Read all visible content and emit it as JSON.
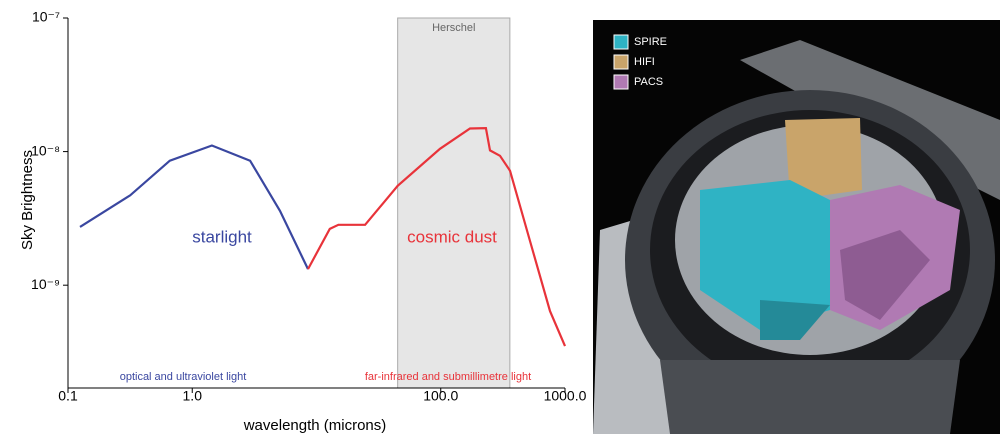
{
  "chart_data": {
    "type": "line",
    "y_label": "Sky Brightness",
    "x_label": "wavelength (microns)",
    "log_x": true,
    "log_y": true,
    "xlim": [
      0.1,
      1000
    ],
    "ylim": [
      1.7e-10,
      1e-07
    ],
    "xticks": [
      0.1,
      {
        "value": 1,
        "label": "1.0"
      },
      {
        "value": 100,
        "label": "100.0"
      },
      {
        "value": 1000,
        "label": "1000.0"
      }
    ],
    "yticks": [
      {
        "value": 1e-09,
        "label": "10⁻⁹"
      },
      {
        "value": 1e-08,
        "label": "10⁻⁸"
      },
      {
        "value": 1e-07,
        "label": "10⁻⁷"
      }
    ],
    "band": {
      "label": "Herschel",
      "x": [
        45,
        360
      ],
      "color": "#e6e6e6"
    },
    "annotations": [
      {
        "text": "optical and ultraviolet light",
        "color": "#3a47a0"
      },
      {
        "text": "far-infrared and submillimetre light",
        "color": "#e8333a"
      }
    ],
    "series": [
      {
        "name": "starlight",
        "color": "#3a47a0",
        "x": [
          0.125,
          0.316,
          0.66,
          1.44,
          2.92,
          5.08,
          8.55
        ],
        "values": [
          2.73e-09,
          4.7e-09,
          8.55e-09,
          1.11e-08,
          8.55e-09,
          3.6e-09,
          1.32e-09
        ]
      },
      {
        "name": "cosmic dust",
        "color": "#e8333a",
        "x": [
          8.55,
          12.8,
          15,
          24.6,
          45,
          98.6,
          172,
          231,
          249,
          300,
          361,
          523,
          757,
          1000
        ],
        "values": [
          1.32e-09,
          2.64e-09,
          2.83e-09,
          2.83e-09,
          5.55e-09,
          1.05e-08,
          1.49e-08,
          1.5e-08,
          1.02e-08,
          9.3e-09,
          7.2e-09,
          2.14e-09,
          6.4e-10,
          3.5e-10
        ]
      }
    ]
  },
  "image": {
    "legend": [
      {
        "label": "SPIRE",
        "color": "#2fb3c4"
      },
      {
        "label": "HIFI",
        "color": "#c9a46a"
      },
      {
        "label": "PACS",
        "color": "#b07ab3"
      }
    ]
  }
}
